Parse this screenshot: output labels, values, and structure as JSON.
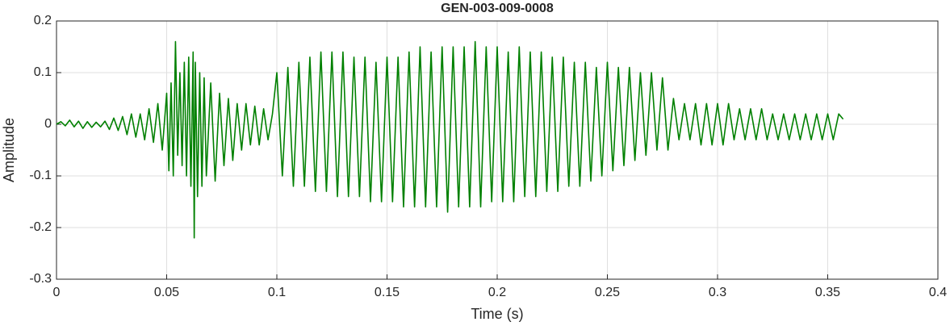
{
  "chart_data": {
    "type": "line",
    "title": "GEN-003-009-0008",
    "x_label": "Time (s)",
    "y_label": "Amplitude",
    "x": [
      0,
      0.002,
      0.004,
      0.006,
      0.008,
      0.01,
      0.012,
      0.014,
      0.016,
      0.018,
      0.02,
      0.022,
      0.024,
      0.026,
      0.028,
      0.03,
      0.032,
      0.034,
      0.036,
      0.038,
      0.04,
      0.042,
      0.044,
      0.046,
      0.048,
      0.05,
      0.051,
      0.052,
      0.053,
      0.054,
      0.055,
      0.056,
      0.057,
      0.058,
      0.059,
      0.06,
      0.061,
      0.062,
      0.0625,
      0.063,
      0.064,
      0.065,
      0.066,
      0.067,
      0.068,
      0.07,
      0.072,
      0.074,
      0.076,
      0.078,
      0.08,
      0.082,
      0.084,
      0.086,
      0.088,
      0.09,
      0.092,
      0.094,
      0.096,
      0.098,
      0.1,
      0.1025,
      0.105,
      0.1075,
      0.11,
      0.1125,
      0.115,
      0.1175,
      0.12,
      0.1225,
      0.125,
      0.1275,
      0.13,
      0.1325,
      0.135,
      0.1375,
      0.14,
      0.1425,
      0.145,
      0.1475,
      0.15,
      0.1525,
      0.155,
      0.1575,
      0.16,
      0.1625,
      0.165,
      0.1675,
      0.17,
      0.1725,
      0.175,
      0.1775,
      0.18,
      0.1825,
      0.185,
      0.1875,
      0.19,
      0.1925,
      0.195,
      0.1975,
      0.2,
      0.2025,
      0.205,
      0.2075,
      0.21,
      0.2125,
      0.215,
      0.2175,
      0.22,
      0.2225,
      0.225,
      0.2275,
      0.23,
      0.2325,
      0.235,
      0.2375,
      0.24,
      0.2425,
      0.245,
      0.2475,
      0.25,
      0.2525,
      0.255,
      0.2575,
      0.26,
      0.2625,
      0.265,
      0.2675,
      0.27,
      0.2725,
      0.275,
      0.2775,
      0.28,
      0.2825,
      0.285,
      0.2875,
      0.29,
      0.2925,
      0.295,
      0.2975,
      0.3,
      0.3025,
      0.305,
      0.3075,
      0.31,
      0.3125,
      0.315,
      0.3175,
      0.32,
      0.3225,
      0.325,
      0.3275,
      0.33,
      0.3325,
      0.335,
      0.3375,
      0.34,
      0.3425,
      0.345,
      0.3475,
      0.35,
      0.3525,
      0.355,
      0.357
    ],
    "series": [
      {
        "color": "#008000",
        "values": [
          0,
          0.005,
          -0.003,
          0.008,
          -0.005,
          0.006,
          -0.008,
          0.005,
          -0.006,
          0.004,
          -0.005,
          0.006,
          -0.01,
          0.012,
          -0.012,
          0.015,
          -0.02,
          0.02,
          -0.025,
          0.02,
          -0.03,
          0.03,
          -0.035,
          0.04,
          -0.05,
          0.06,
          -0.09,
          0.08,
          -0.1,
          0.16,
          -0.06,
          0.1,
          -0.08,
          0.12,
          -0.1,
          0.13,
          -0.12,
          0.14,
          -0.22,
          0.12,
          -0.14,
          0.1,
          -0.12,
          0.09,
          -0.1,
          0.08,
          -0.11,
          0.06,
          -0.08,
          0.05,
          -0.07,
          0.04,
          -0.05,
          0.04,
          -0.04,
          0.035,
          -0.04,
          0.03,
          -0.03,
          0.02,
          0.1,
          -0.1,
          0.11,
          -0.12,
          0.12,
          -0.12,
          0.13,
          -0.13,
          0.14,
          -0.13,
          0.14,
          -0.14,
          0.14,
          -0.14,
          0.13,
          -0.14,
          0.13,
          -0.15,
          0.12,
          -0.15,
          0.13,
          -0.15,
          0.13,
          -0.16,
          0.14,
          -0.16,
          0.15,
          -0.16,
          0.14,
          -0.16,
          0.15,
          -0.17,
          0.15,
          -0.16,
          0.15,
          -0.16,
          0.16,
          -0.16,
          0.15,
          -0.15,
          0.15,
          -0.15,
          0.14,
          -0.15,
          0.15,
          -0.14,
          0.14,
          -0.14,
          0.14,
          -0.13,
          0.13,
          -0.13,
          0.13,
          -0.12,
          0.12,
          -0.12,
          0.12,
          -0.11,
          0.11,
          -0.1,
          0.12,
          -0.09,
          0.11,
          -0.08,
          0.11,
          -0.07,
          0.1,
          -0.06,
          0.1,
          -0.05,
          0.09,
          -0.05,
          0.05,
          -0.03,
          0.04,
          -0.03,
          0.04,
          -0.04,
          0.04,
          -0.04,
          0.04,
          -0.04,
          0.04,
          -0.03,
          0.03,
          -0.03,
          0.03,
          -0.03,
          0.03,
          -0.03,
          0.02,
          -0.03,
          0.02,
          -0.03,
          0.02,
          -0.03,
          0.02,
          -0.03,
          0.02,
          -0.03,
          0.02,
          -0.03,
          0.02,
          0.01
        ]
      }
    ],
    "xlim": [
      0,
      0.4
    ],
    "xticks": [
      0,
      0.05,
      0.1,
      0.15,
      0.2,
      0.25,
      0.3,
      0.35,
      0.4
    ],
    "ylim": [
      -0.3,
      0.2
    ],
    "yticks": [
      -0.3,
      -0.2,
      -0.1,
      0,
      0.1,
      0.2
    ],
    "grid": true
  }
}
